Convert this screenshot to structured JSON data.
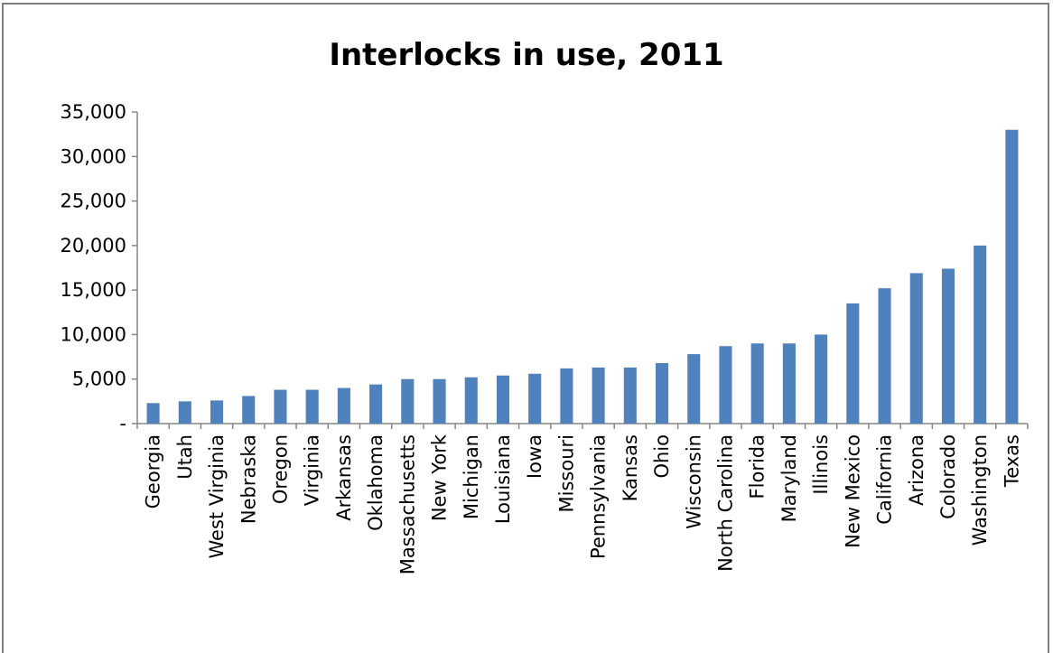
{
  "chart_data": {
    "type": "bar",
    "title": "Interlocks in use, 2011",
    "xlabel": "",
    "ylabel": "",
    "ylim": [
      0,
      35000
    ],
    "yticks": [
      0,
      5000,
      10000,
      15000,
      20000,
      25000,
      30000,
      35000
    ],
    "ytick_labels": [
      "-",
      "5,000",
      "10,000",
      "15,000",
      "20,000",
      "25,000",
      "30,000",
      "35,000"
    ],
    "grid": false,
    "legend": "none",
    "bar_color": "#4f81bd",
    "categories": [
      "Georgia",
      "Utah",
      "West Virginia",
      "Nebraska",
      "Oregon",
      "Virginia",
      "Arkansas",
      "Oklahoma",
      "Massachusetts",
      "New York",
      "Michigan",
      "Louisiana",
      "Iowa",
      "Missouri",
      "Pennsylvania",
      "Kansas",
      "Ohio",
      "Wisconsin",
      "North Carolina",
      "Florida",
      "Maryland",
      "Illinois",
      "New Mexico",
      "California",
      "Arizona",
      "Colorado",
      "Washington",
      "Texas"
    ],
    "values": [
      2300,
      2500,
      2600,
      3100,
      3800,
      3800,
      4000,
      4400,
      5000,
      5000,
      5200,
      5400,
      5600,
      6200,
      6300,
      6300,
      6800,
      7800,
      8700,
      9000,
      9000,
      10000,
      13500,
      15200,
      16900,
      17400,
      20000,
      33000
    ]
  }
}
